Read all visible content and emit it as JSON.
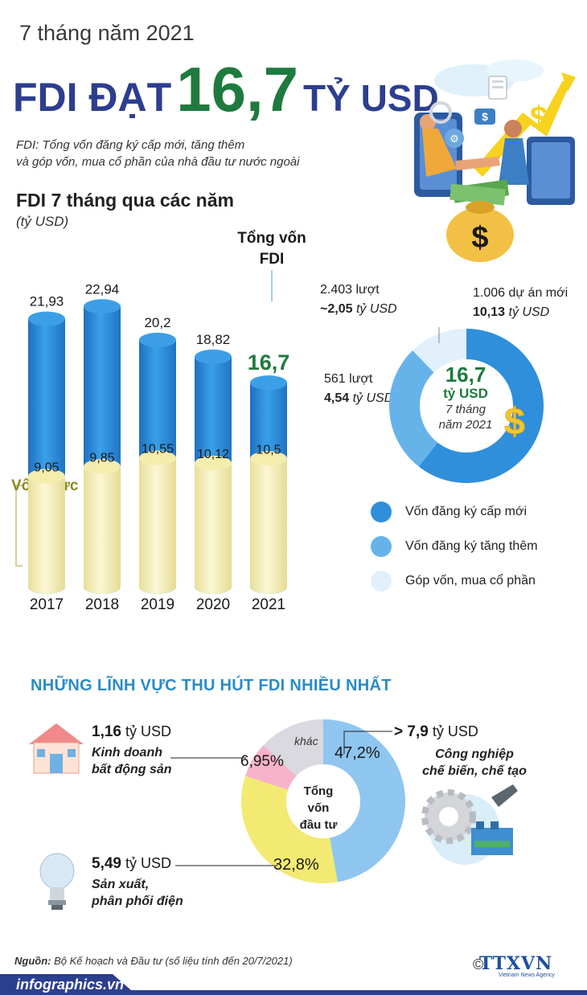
{
  "header": {
    "period": "7 tháng năm 2021",
    "headline_a": "FDI ĐẠT",
    "headline_value": "16,7",
    "headline_b": "TỶ USD",
    "definition_line1": "FDI: Tổng vốn đăng ký cấp mới, tăng thêm",
    "definition_line2": "và góp vốn, mua cổ phần của nhà đầu tư nước ngoài"
  },
  "chart_data": [
    {
      "type": "bar",
      "title": "FDI 7 tháng qua các năm",
      "unit": "(tỷ USD)",
      "categories": [
        "2017",
        "2018",
        "2019",
        "2020",
        "2021"
      ],
      "series": [
        {
          "name": "Tổng vốn FDI",
          "values": [
            21.93,
            22.94,
            20.2,
            18.82,
            16.7
          ],
          "labels": [
            "21,93",
            "22,94",
            "20,2",
            "18,82",
            "16,7"
          ],
          "color": "#2f8fdb"
        },
        {
          "name": "Vốn thực hiện",
          "values": [
            9.05,
            9.85,
            10.55,
            10.12,
            10.5
          ],
          "labels": [
            "9,05",
            "9,85",
            "10,55",
            "10,12",
            "10,5"
          ],
          "color": "#f6f0b8"
        }
      ],
      "total_label_line1": "Tổng vốn",
      "total_label_line2": "FDI",
      "realized_label": "Vốn thực hiện",
      "ylim": [
        0,
        25
      ]
    },
    {
      "type": "pie",
      "center_value": "16,7",
      "center_unit": "tỷ USD",
      "center_period_line1": "7 tháng",
      "center_period_line2": "năm 2021",
      "slices": [
        {
          "name": "Vốn đăng ký cấp mới",
          "value": 10.13,
          "color": "#2f8fdb",
          "count_text": "1.006 dự án mới",
          "value_text": "10,13",
          "unit_text": "tỷ USD"
        },
        {
          "name": "Vốn đăng ký tăng thêm",
          "value": 4.54,
          "color": "#66b3ea",
          "count_text": "561 lượt",
          "value_text": "4,54",
          "unit_text": "tỷ USD"
        },
        {
          "name": "Góp vốn, mua cổ phần",
          "value": 2.05,
          "color": "#e1f0fb",
          "count_text": "2.403 lượt",
          "value_text": "~2,05",
          "unit_text": "tỷ USD"
        }
      ]
    },
    {
      "type": "pie",
      "title": "NHỮNG LĨNH VỰC THU HÚT FDI NHIỀU NHẤT",
      "center_line1": "Tổng",
      "center_line2": "vốn",
      "center_line3": "đầu tư",
      "slices": [
        {
          "name_line1": "Công nghiệp",
          "name_line2": "chế biến, chế tạo",
          "value": 47.2,
          "pct_label": "47,2%",
          "amount": "> 7,9",
          "unit": "tỷ USD",
          "color": "#8ec6f0"
        },
        {
          "name_line1": "Sản xuất,",
          "name_line2": "phân phối điện",
          "value": 32.8,
          "pct_label": "32,8%",
          "amount": "5,49",
          "unit": "tỷ USD",
          "color": "#f2ea72"
        },
        {
          "name_line1": "Kinh doanh",
          "name_line2": "bất động sản",
          "value": 6.95,
          "pct_label": "6,95%",
          "amount": "1,16",
          "unit": "tỷ USD",
          "color": "#f7b3c9"
        },
        {
          "name_line1": "khác",
          "value": 13.05,
          "color": "#d9d9df"
        }
      ]
    }
  ],
  "footer": {
    "source_label": "Nguồn:",
    "source_text": " Bộ Kế hoạch và Đầu tư (số liệu tính đến 20/7/2021)",
    "site": "infographics.vn",
    "copyright": "©",
    "logo_text": "TTXVN",
    "logo_tagline": "Vietnam News Agency"
  },
  "colors": {
    "headline": "#2c3e8f",
    "accent_green": "#1e7a3e",
    "bar_blue": "#2f8fdb",
    "bar_yellow": "#f6f0b8",
    "section_title": "#2a8bc6",
    "footer_bar": "#2c3e8f"
  },
  "icons": [
    "handshake-illustration",
    "money-bag-icon",
    "dollar-coin-icon",
    "house-icon",
    "light-bulb-icon",
    "gear-wrench-factory-icon"
  ]
}
